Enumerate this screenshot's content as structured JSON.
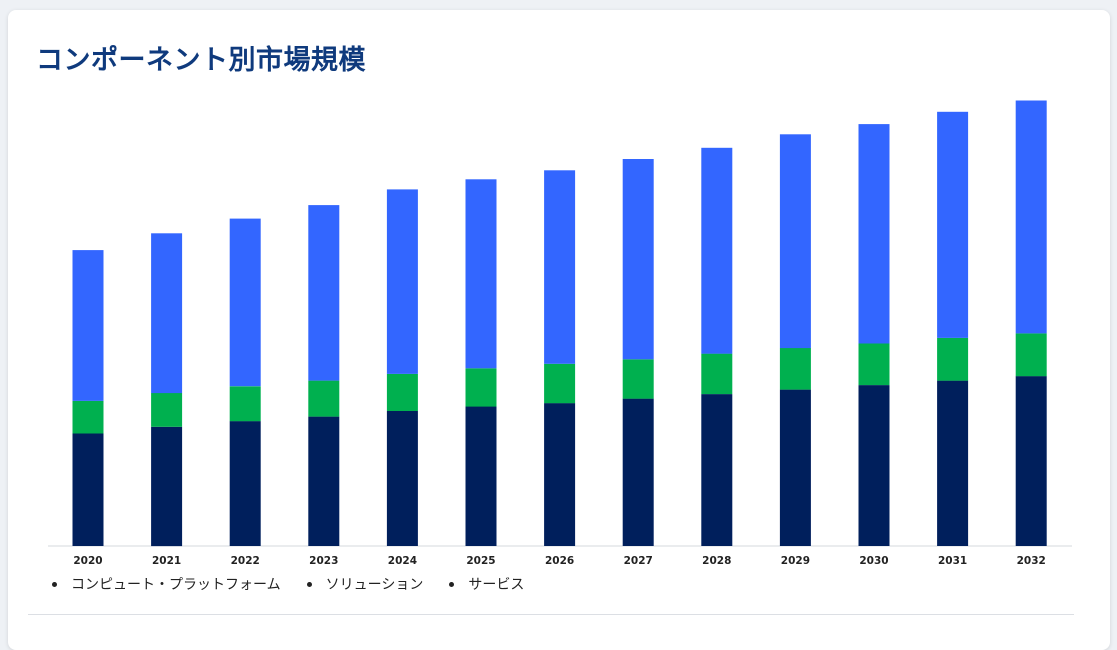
{
  "page": {
    "title": "コンポーネント別市場規模"
  },
  "colors": {
    "title": "#0f3a7d",
    "series": [
      "#001f5c",
      "#00b04f",
      "#3366ff"
    ]
  },
  "chart_data": {
    "type": "bar",
    "stacked": true,
    "title": "",
    "xlabel": "",
    "ylabel": "",
    "grid": false,
    "legend_position": "bottom-left",
    "ylim": [
      0,
      400
    ],
    "categories": [
      "2020",
      "2021",
      "2022",
      "2023",
      "2024",
      "2025",
      "2026",
      "2027",
      "2028",
      "2029",
      "2030",
      "2031",
      "2032"
    ],
    "series": [
      {
        "name": "コンピュート・プラットフォーム",
        "values": [
          100,
          106,
          111,
          115,
          120,
          124,
          127,
          131,
          135,
          139,
          143,
          147,
          151
        ]
      },
      {
        "name": "ソリューション",
        "values": [
          29,
          30,
          31,
          32,
          33,
          34,
          35,
          35,
          36,
          37,
          37,
          38,
          38
        ]
      },
      {
        "name": "サービス",
        "values": [
          134,
          142,
          149,
          156,
          164,
          168,
          172,
          178,
          183,
          190,
          195,
          201,
          207
        ]
      }
    ]
  }
}
